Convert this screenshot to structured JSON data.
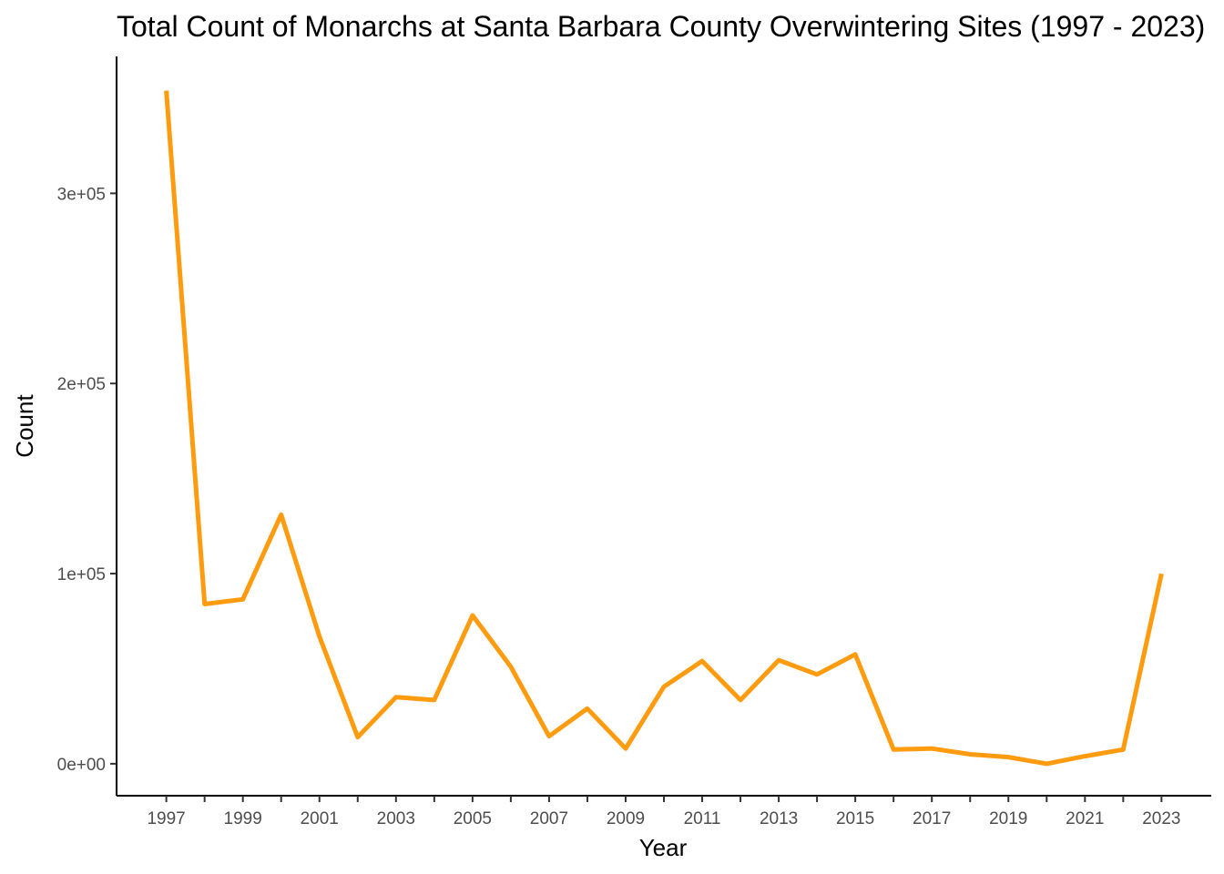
{
  "chart_data": {
    "type": "line",
    "title": "Total Count of Monarchs at Santa Barbara County Overwintering Sites (1997 - 2023)",
    "xlabel": "Year",
    "ylabel": "Count",
    "x": [
      1997,
      1998,
      1999,
      2000,
      2001,
      2002,
      2003,
      2004,
      2005,
      2006,
      2007,
      2008,
      2009,
      2010,
      2011,
      2012,
      2013,
      2014,
      2015,
      2016,
      2017,
      2018,
      2019,
      2020,
      2021,
      2022,
      2023
    ],
    "series": [
      {
        "values": [
          354000,
          84000,
          86500,
          131000,
          67000,
          14000,
          35000,
          33500,
          78000,
          51000,
          14500,
          29000,
          8000,
          40500,
          54000,
          33500,
          54500,
          47000,
          57500,
          7500,
          8000,
          5000,
          3500,
          0,
          4000,
          7500,
          100000
        ]
      }
    ],
    "xlim": [
      1995.7,
      2024.3
    ],
    "ylim": [
      -16800,
      372000
    ],
    "x_ticks": [
      1997,
      1999,
      2001,
      2003,
      2005,
      2007,
      2009,
      2011,
      2013,
      2015,
      2017,
      2019,
      2021,
      2023
    ],
    "x_tick_labels": [
      "1997",
      "1999",
      "2001",
      "2003",
      "2005",
      "2007",
      "2009",
      "2011",
      "2013",
      "2015",
      "2017",
      "2019",
      "2021",
      "2023"
    ],
    "y_ticks": [
      0,
      100000,
      200000,
      300000
    ],
    "y_tick_labels": [
      "0e+00",
      "1e+05",
      "2e+05",
      "3e+05"
    ],
    "grid": false,
    "line_color": "#ff9b0f"
  }
}
